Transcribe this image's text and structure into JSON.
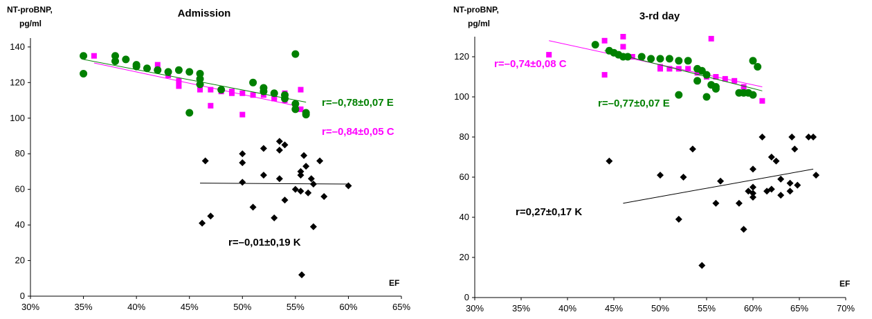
{
  "chart_data": [
    {
      "type": "scatter",
      "title": "Admission",
      "ylabel_line1": "NT-proBNP,",
      "ylabel_line2": "pg/ml",
      "xlabel": "EF",
      "xlim": [
        0.3,
        0.65
      ],
      "ylim": [
        0,
        145
      ],
      "x_ticks": [
        "30%",
        "35%",
        "40%",
        "45%",
        "50%",
        "55%",
        "60%",
        "65%"
      ],
      "x_tick_values": [
        0.3,
        0.35,
        0.4,
        0.45,
        0.5,
        0.55,
        0.6,
        0.65
      ],
      "y_ticks": [
        "0",
        "20",
        "40",
        "60",
        "80",
        "100",
        "120",
        "140"
      ],
      "y_tick_values": [
        0,
        20,
        40,
        60,
        80,
        100,
        120,
        140
      ],
      "series": [
        {
          "marker": "square",
          "color": "#ff00ff",
          "annotation": "r=–0,84±0,05 C",
          "trend": [
            [
              0.36,
              131
            ],
            [
              0.55,
              107
            ]
          ],
          "points": [
            [
              0.36,
              135
            ],
            [
              0.42,
              130
            ],
            [
              0.43,
              124
            ],
            [
              0.44,
              121
            ],
            [
              0.44,
              118
            ],
            [
              0.46,
              118
            ],
            [
              0.46,
              116
            ],
            [
              0.47,
              116
            ],
            [
              0.47,
              107
            ],
            [
              0.48,
              115
            ],
            [
              0.49,
              115
            ],
            [
              0.49,
              114
            ],
            [
              0.5,
              102
            ],
            [
              0.5,
              114
            ],
            [
              0.51,
              113
            ],
            [
              0.52,
              113
            ],
            [
              0.53,
              112
            ],
            [
              0.53,
              111
            ],
            [
              0.54,
              110
            ],
            [
              0.54,
              114
            ],
            [
              0.55,
              108
            ],
            [
              0.555,
              116
            ],
            [
              0.555,
              105
            ]
          ]
        },
        {
          "marker": "circle",
          "color": "#008000",
          "annotation": "r=–0,78±0,07  E",
          "trend": [
            [
              0.35,
              133
            ],
            [
              0.56,
              109
            ]
          ],
          "points": [
            [
              0.35,
              135
            ],
            [
              0.35,
              125
            ],
            [
              0.38,
              135
            ],
            [
              0.38,
              132
            ],
            [
              0.39,
              133
            ],
            [
              0.4,
              130
            ],
            [
              0.4,
              129
            ],
            [
              0.41,
              128
            ],
            [
              0.42,
              127
            ],
            [
              0.43,
              126
            ],
            [
              0.44,
              127
            ],
            [
              0.45,
              126
            ],
            [
              0.45,
              103
            ],
            [
              0.46,
              125
            ],
            [
              0.46,
              122
            ],
            [
              0.46,
              119
            ],
            [
              0.48,
              116
            ],
            [
              0.51,
              120
            ],
            [
              0.52,
              117
            ],
            [
              0.52,
              115
            ],
            [
              0.53,
              114
            ],
            [
              0.54,
              113
            ],
            [
              0.54,
              111
            ],
            [
              0.55,
              136
            ],
            [
              0.55,
              108
            ],
            [
              0.55,
              105
            ],
            [
              0.56,
              103
            ],
            [
              0.56,
              102
            ]
          ]
        },
        {
          "marker": "diamond",
          "color": "#000000",
          "annotation": "r=–0,01±0,19 K",
          "trend": [
            [
              0.46,
              63.5
            ],
            [
              0.6,
              63.0
            ]
          ],
          "points": [
            [
              0.465,
              76
            ],
            [
              0.47,
              45
            ],
            [
              0.462,
              41
            ],
            [
              0.5,
              80
            ],
            [
              0.5,
              75
            ],
            [
              0.5,
              64
            ],
            [
              0.51,
              50
            ],
            [
              0.52,
              83
            ],
            [
              0.52,
              68
            ],
            [
              0.53,
              44
            ],
            [
              0.535,
              87
            ],
            [
              0.535,
              82
            ],
            [
              0.535,
              66
            ],
            [
              0.54,
              85
            ],
            [
              0.54,
              54
            ],
            [
              0.55,
              60
            ],
            [
              0.555,
              70
            ],
            [
              0.555,
              68
            ],
            [
              0.555,
              59
            ],
            [
              0.556,
              12
            ],
            [
              0.558,
              79
            ],
            [
              0.56,
              73
            ],
            [
              0.562,
              58
            ],
            [
              0.565,
              66
            ],
            [
              0.567,
              63
            ],
            [
              0.567,
              39
            ],
            [
              0.573,
              76
            ],
            [
              0.577,
              56
            ],
            [
              0.6,
              62
            ]
          ]
        }
      ]
    },
    {
      "type": "scatter",
      "title": "3-rd day",
      "ylabel_line1": "NT-proBNP,",
      "ylabel_line2": "pg/ml",
      "xlabel": "EF",
      "xlim": [
        0.3,
        0.7
      ],
      "ylim": [
        0,
        130
      ],
      "x_ticks": [
        "30%",
        "35%",
        "40%",
        "45%",
        "50%",
        "55%",
        "60%",
        "65%",
        "70%"
      ],
      "x_tick_values": [
        0.3,
        0.35,
        0.4,
        0.45,
        0.5,
        0.55,
        0.6,
        0.65,
        0.7
      ],
      "y_ticks": [
        "0",
        "20",
        "40",
        "60",
        "80",
        "100",
        "120"
      ],
      "y_tick_values": [
        0,
        20,
        40,
        60,
        80,
        100,
        120
      ],
      "series": [
        {
          "marker": "square",
          "color": "#ff00ff",
          "annotation": "r=–0,74±0,08 C",
          "trend": [
            [
              0.38,
              128
            ],
            [
              0.61,
              105
            ]
          ],
          "points": [
            [
              0.38,
              121
            ],
            [
              0.44,
              128
            ],
            [
              0.44,
              111
            ],
            [
              0.46,
              130
            ],
            [
              0.46,
              125
            ],
            [
              0.47,
              120
            ],
            [
              0.48,
              120
            ],
            [
              0.5,
              115
            ],
            [
              0.5,
              114
            ],
            [
              0.51,
              114
            ],
            [
              0.52,
              114
            ],
            [
              0.53,
              114
            ],
            [
              0.54,
              112
            ],
            [
              0.55,
              110
            ],
            [
              0.555,
              129
            ],
            [
              0.56,
              110
            ],
            [
              0.57,
              109
            ],
            [
              0.58,
              108
            ],
            [
              0.59,
              105
            ],
            [
              0.61,
              98
            ]
          ]
        },
        {
          "marker": "circle",
          "color": "#008000",
          "annotation": "r=–0,77±0,07 E",
          "trend": [
            [
              0.44,
              123
            ],
            [
              0.61,
              103
            ]
          ],
          "points": [
            [
              0.43,
              126
            ],
            [
              0.445,
              123
            ],
            [
              0.45,
              122
            ],
            [
              0.455,
              121
            ],
            [
              0.46,
              120
            ],
            [
              0.465,
              120
            ],
            [
              0.48,
              120
            ],
            [
              0.49,
              119
            ],
            [
              0.5,
              119
            ],
            [
              0.51,
              119
            ],
            [
              0.52,
              118
            ],
            [
              0.53,
              118
            ],
            [
              0.52,
              101
            ],
            [
              0.54,
              114
            ],
            [
              0.54,
              108
            ],
            [
              0.545,
              113
            ],
            [
              0.55,
              111
            ],
            [
              0.55,
              100
            ],
            [
              0.555,
              106
            ],
            [
              0.56,
              105
            ],
            [
              0.56,
              104
            ],
            [
              0.585,
              102
            ],
            [
              0.59,
              102
            ],
            [
              0.595,
              102
            ],
            [
              0.6,
              101
            ],
            [
              0.6,
              118
            ],
            [
              0.605,
              115
            ]
          ]
        },
        {
          "marker": "diamond",
          "color": "#000000",
          "annotation": "r=0,27±0,17 K",
          "trend": [
            [
              0.46,
              47
            ],
            [
              0.665,
              64
            ]
          ],
          "points": [
            [
              0.445,
              68
            ],
            [
              0.5,
              61
            ],
            [
              0.52,
              39
            ],
            [
              0.525,
              60
            ],
            [
              0.535,
              74
            ],
            [
              0.545,
              16
            ],
            [
              0.56,
              47
            ],
            [
              0.565,
              58
            ],
            [
              0.585,
              47
            ],
            [
              0.59,
              34
            ],
            [
              0.595,
              53
            ],
            [
              0.6,
              64
            ],
            [
              0.6,
              55
            ],
            [
              0.6,
              52
            ],
            [
              0.6,
              50
            ],
            [
              0.61,
              80
            ],
            [
              0.615,
              53
            ],
            [
              0.62,
              70
            ],
            [
              0.62,
              54
            ],
            [
              0.625,
              68
            ],
            [
              0.63,
              51
            ],
            [
              0.63,
              59
            ],
            [
              0.64,
              53
            ],
            [
              0.64,
              57
            ],
            [
              0.642,
              80
            ],
            [
              0.645,
              74
            ],
            [
              0.648,
              56
            ],
            [
              0.66,
              80
            ],
            [
              0.665,
              80
            ],
            [
              0.668,
              61
            ]
          ]
        }
      ]
    }
  ]
}
